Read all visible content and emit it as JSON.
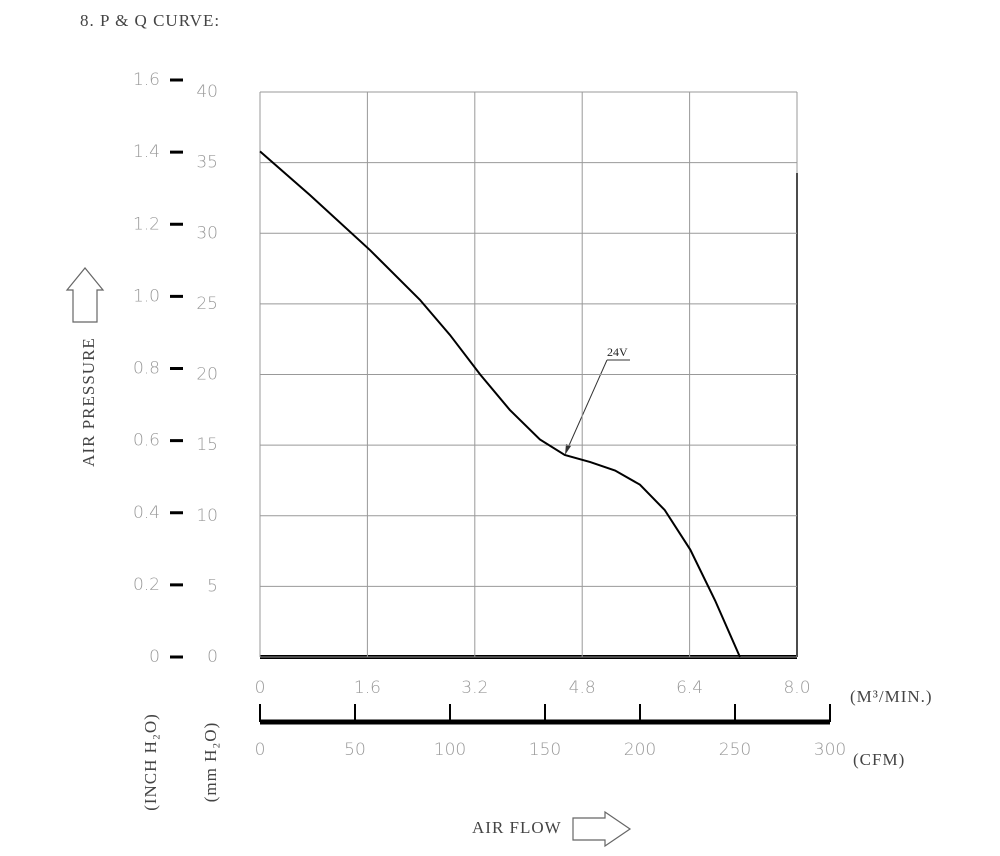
{
  "chart_data": {
    "type": "line",
    "title": "8. P & Q CURVE:",
    "y_label": "AIR PRESSURE",
    "x_label": "AIR FLOW",
    "x_unit": "(M³/MIN.)",
    "x2_unit": "(CFM)",
    "y_unit": "(mm H₂O)",
    "y2_unit": "(INCH H₂O)",
    "xlim": [
      0,
      8
    ],
    "xticks": [
      0,
      1.6,
      3.2,
      4.8,
      6.4,
      {
        "value": 8,
        "label": "8.0"
      }
    ],
    "x2lim": [
      0,
      300
    ],
    "x2ticks": [
      0,
      50,
      100,
      150,
      200,
      250,
      300
    ],
    "ylim": [
      0,
      40
    ],
    "yticks": [
      0,
      5,
      10,
      15,
      20,
      25,
      30,
      35,
      40
    ],
    "y2lim": [
      0,
      1.6
    ],
    "y2ticks": [
      0,
      0.2,
      0.4,
      0.6,
      0.8,
      {
        "value": 1,
        "label": "1.0"
      },
      1.2,
      1.4,
      1.6
    ],
    "grid": true,
    "x": [
      0,
      0.745,
      1.64,
      2.38,
      2.83,
      3.28,
      3.72,
      4.17,
      4.54,
      4.92,
      5.29,
      5.66,
      6.03,
      6.41,
      6.78,
      7.15
    ],
    "series": [
      {
        "name": "24V",
        "color": "#000000",
        "values": [
          35.8,
          32.7,
          28.8,
          25.3,
          22.8,
          20.0,
          17.5,
          15.4,
          14.3,
          13.8,
          13.2,
          12.2,
          10.4,
          7.6,
          4.0,
          0
        ]
      }
    ]
  }
}
